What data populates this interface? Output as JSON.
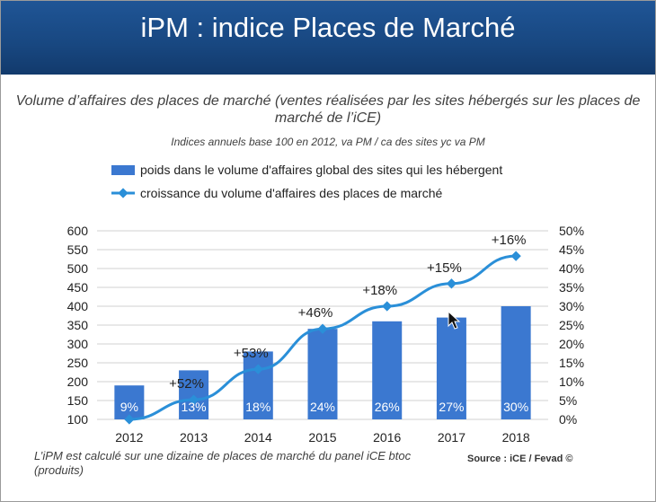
{
  "header": {
    "title": "iPM : indice Places de Marché"
  },
  "chart_data": {
    "type": "bar",
    "title": "Volume d’affaires des places de marché (ventes réalisées par les sites hébergés sur les places de marché de l’iCE)",
    "subtitle": "Indices annuels base 100 en 2012, va PM / ca des sites yc va PM",
    "categories": [
      "2012",
      "2013",
      "2014",
      "2015",
      "2016",
      "2017",
      "2018"
    ],
    "series": [
      {
        "name": "poids dans le volume d'affaires global des sites qui les hébergent",
        "kind": "bar",
        "axis": "right",
        "values": [
          9,
          13,
          18,
          24,
          26,
          27,
          30
        ],
        "labels": [
          "9%",
          "13%",
          "18%",
          "24%",
          "26%",
          "27%",
          "30%"
        ],
        "color": "#3b78d0"
      },
      {
        "name": "croissance du volume d'affaires des places de marché",
        "kind": "line",
        "axis": "left",
        "values": [
          100,
          152,
          233,
          340,
          400,
          460,
          533
        ],
        "labels": [
          "",
          "+52%",
          "+53%",
          "+46%",
          "+18%",
          "+15%",
          "+16%"
        ],
        "color": "#2a8fd8"
      }
    ],
    "y_left": {
      "min": 100,
      "max": 600,
      "ticks": [
        "100",
        "150",
        "200",
        "250",
        "300",
        "350",
        "400",
        "450",
        "500",
        "550",
        "600"
      ]
    },
    "y_right": {
      "min": 0,
      "max": 50,
      "ticks": [
        "0%",
        "5%",
        "10%",
        "15%",
        "20%",
        "25%",
        "30%",
        "35%",
        "40%",
        "45%",
        "50%"
      ]
    },
    "grid": true,
    "legend": "top"
  },
  "footnote": "L’iPM est calculé sur une dizaine de places de marché du panel iCE btoc (produits)",
  "source": "Source : iCE / Fevad ©"
}
